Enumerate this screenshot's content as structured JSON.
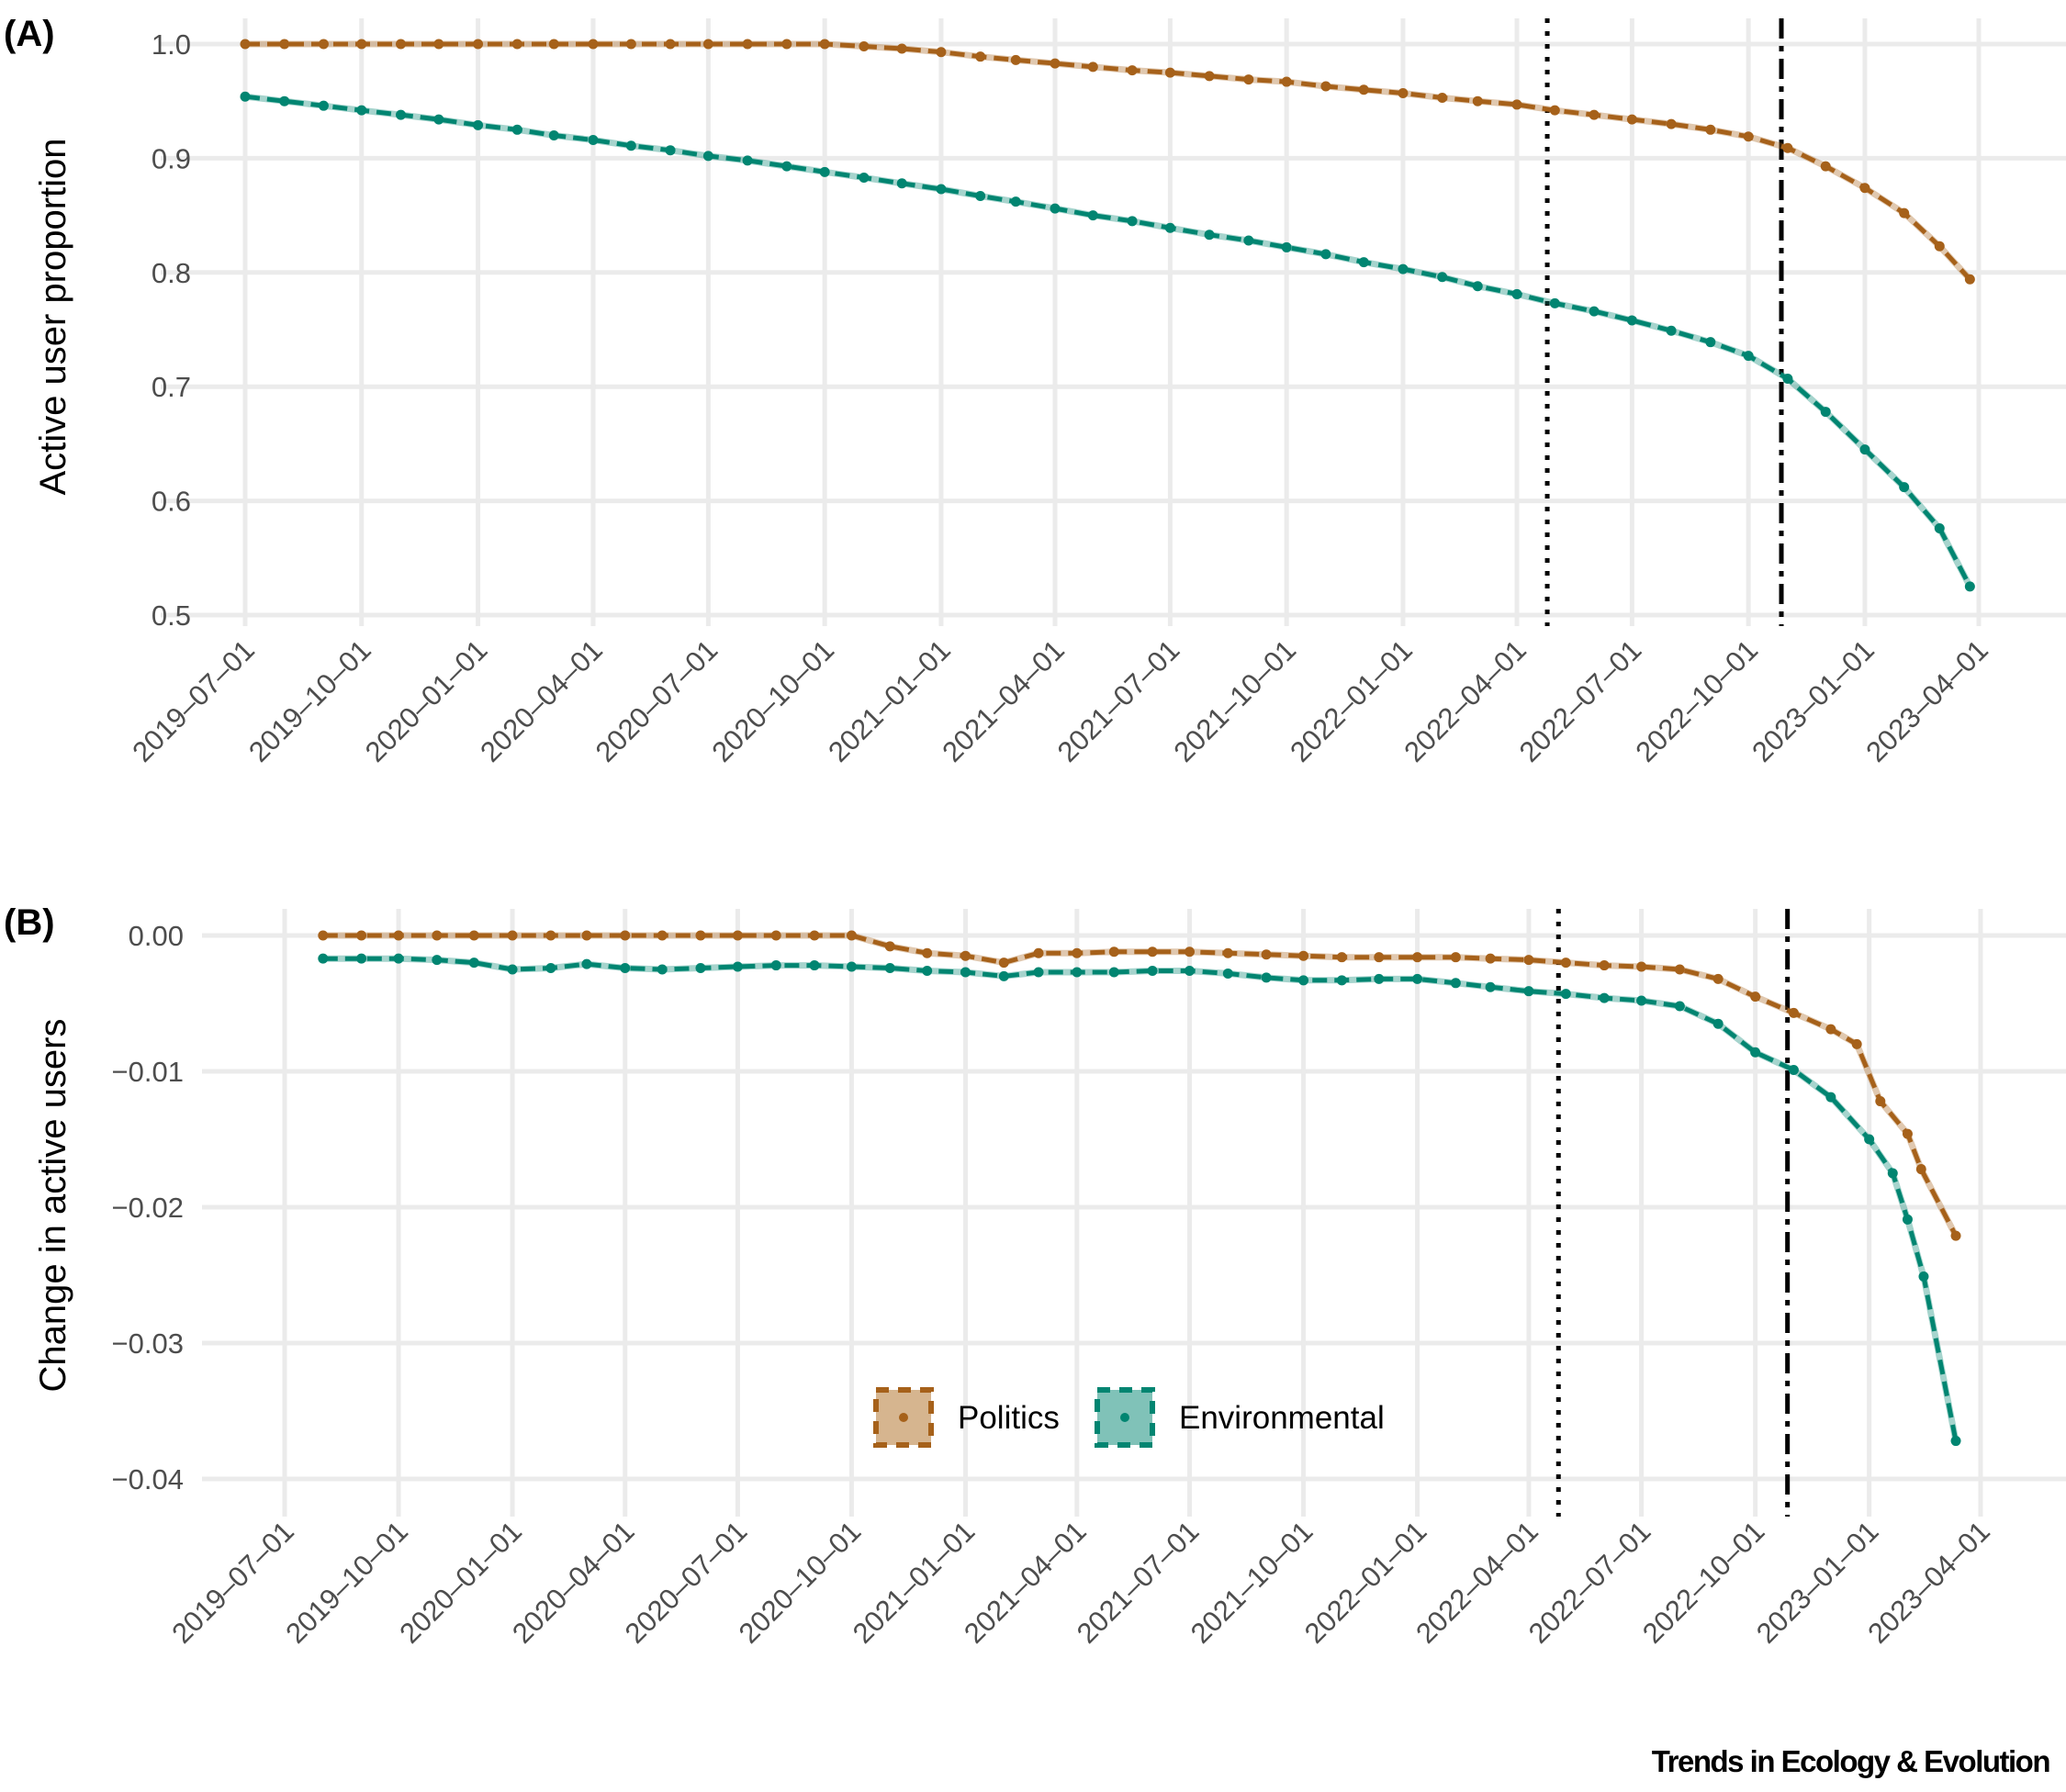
{
  "footer": "Trends in Ecology & Evolution",
  "legend": [
    {
      "label": "Politics",
      "color": "#a6611a",
      "fill": "#d6b58f"
    },
    {
      "label": "Environmental",
      "color": "#018571",
      "fill": "#80c2b8"
    }
  ],
  "chart_data": [
    {
      "panel_label": "(A)",
      "type": "line",
      "ylabel": "Active user proportion",
      "xlabel": "",
      "ylim": [
        0.5,
        1.0
      ],
      "yticks": [
        "1.0",
        "0.9",
        "0.8",
        "0.7",
        "0.6",
        "0.5"
      ],
      "ytick_values": [
        1.0,
        0.9,
        0.8,
        0.7,
        0.6,
        0.5
      ],
      "xticks": [
        "2019-07-01",
        "2019-10-01",
        "2020-01-01",
        "2020-04-01",
        "2020-07-01",
        "2020-10-01",
        "2021-01-01",
        "2021-04-01",
        "2021-07-01",
        "2021-10-01",
        "2022-01-01",
        "2022-04-01",
        "2022-07-01",
        "2022-10-01",
        "2023-01-01",
        "2023-04-01"
      ],
      "grid": true,
      "vlines": [
        {
          "date": "2022-04-25",
          "style": "dotted"
        },
        {
          "date": "2022-10-27",
          "style": "dashdot"
        }
      ],
      "series": [
        {
          "name": "Politics",
          "color": "#a6611a",
          "points": [
            [
              "2019-07-01",
              1.0
            ],
            [
              "2019-08-01",
              1.0
            ],
            [
              "2019-09-01",
              1.0
            ],
            [
              "2019-10-01",
              1.0
            ],
            [
              "2019-11-01",
              1.0
            ],
            [
              "2019-12-01",
              1.0
            ],
            [
              "2020-01-01",
              1.0
            ],
            [
              "2020-02-01",
              1.0
            ],
            [
              "2020-03-01",
              1.0
            ],
            [
              "2020-04-01",
              1.0
            ],
            [
              "2020-05-01",
              1.0
            ],
            [
              "2020-06-01",
              1.0
            ],
            [
              "2020-07-01",
              1.0
            ],
            [
              "2020-08-01",
              1.0
            ],
            [
              "2020-09-01",
              1.0
            ],
            [
              "2020-10-01",
              1.0
            ],
            [
              "2020-11-01",
              0.998
            ],
            [
              "2020-12-01",
              0.996
            ],
            [
              "2021-01-01",
              0.993
            ],
            [
              "2021-02-01",
              0.989
            ],
            [
              "2021-03-01",
              0.986
            ],
            [
              "2021-04-01",
              0.983
            ],
            [
              "2021-05-01",
              0.98
            ],
            [
              "2021-06-01",
              0.977
            ],
            [
              "2021-07-01",
              0.975
            ],
            [
              "2021-08-01",
              0.972
            ],
            [
              "2021-09-01",
              0.969
            ],
            [
              "2021-10-01",
              0.967
            ],
            [
              "2021-11-01",
              0.963
            ],
            [
              "2021-12-01",
              0.96
            ],
            [
              "2022-01-01",
              0.957
            ],
            [
              "2022-02-01",
              0.953
            ],
            [
              "2022-03-01",
              0.95
            ],
            [
              "2022-04-01",
              0.947
            ],
            [
              "2022-05-01",
              0.942
            ],
            [
              "2022-06-01",
              0.938
            ],
            [
              "2022-07-01",
              0.934
            ],
            [
              "2022-08-01",
              0.93
            ],
            [
              "2022-09-01",
              0.925
            ],
            [
              "2022-10-01",
              0.919
            ],
            [
              "2022-11-01",
              0.909
            ],
            [
              "2022-12-01",
              0.893
            ],
            [
              "2023-01-01",
              0.874
            ],
            [
              "2023-02-01",
              0.852
            ],
            [
              "2023-03-01",
              0.823
            ],
            [
              "2023-03-25",
              0.794
            ]
          ]
        },
        {
          "name": "Environmental",
          "color": "#018571",
          "points": [
            [
              "2019-07-01",
              0.954
            ],
            [
              "2019-08-01",
              0.95
            ],
            [
              "2019-09-01",
              0.946
            ],
            [
              "2019-10-01",
              0.942
            ],
            [
              "2019-11-01",
              0.938
            ],
            [
              "2019-12-01",
              0.934
            ],
            [
              "2020-01-01",
              0.929
            ],
            [
              "2020-02-01",
              0.925
            ],
            [
              "2020-03-01",
              0.92
            ],
            [
              "2020-04-01",
              0.916
            ],
            [
              "2020-05-01",
              0.911
            ],
            [
              "2020-06-01",
              0.907
            ],
            [
              "2020-07-01",
              0.902
            ],
            [
              "2020-08-01",
              0.898
            ],
            [
              "2020-09-01",
              0.893
            ],
            [
              "2020-10-01",
              0.888
            ],
            [
              "2020-11-01",
              0.883
            ],
            [
              "2020-12-01",
              0.878
            ],
            [
              "2021-01-01",
              0.873
            ],
            [
              "2021-02-01",
              0.867
            ],
            [
              "2021-03-01",
              0.862
            ],
            [
              "2021-04-01",
              0.856
            ],
            [
              "2021-05-01",
              0.85
            ],
            [
              "2021-06-01",
              0.845
            ],
            [
              "2021-07-01",
              0.839
            ],
            [
              "2021-08-01",
              0.833
            ],
            [
              "2021-09-01",
              0.828
            ],
            [
              "2021-10-01",
              0.822
            ],
            [
              "2021-11-01",
              0.816
            ],
            [
              "2021-12-01",
              0.809
            ],
            [
              "2022-01-01",
              0.803
            ],
            [
              "2022-02-01",
              0.796
            ],
            [
              "2022-03-01",
              0.788
            ],
            [
              "2022-04-01",
              0.781
            ],
            [
              "2022-05-01",
              0.773
            ],
            [
              "2022-06-01",
              0.766
            ],
            [
              "2022-07-01",
              0.758
            ],
            [
              "2022-08-01",
              0.749
            ],
            [
              "2022-09-01",
              0.739
            ],
            [
              "2022-10-01",
              0.727
            ],
            [
              "2022-11-01",
              0.707
            ],
            [
              "2022-12-01",
              0.678
            ],
            [
              "2023-01-01",
              0.645
            ],
            [
              "2023-02-01",
              0.612
            ],
            [
              "2023-03-01",
              0.576
            ],
            [
              "2023-03-25",
              0.525
            ]
          ]
        }
      ]
    },
    {
      "panel_label": "(B)",
      "type": "line",
      "ylabel": "Change in active users",
      "xlabel": "",
      "ylim": [
        -0.04,
        0.0
      ],
      "yticks": [
        "0.00",
        "−0.01",
        "−0.02",
        "−0.03",
        "−0.04"
      ],
      "ytick_values": [
        0.0,
        -0.01,
        -0.02,
        -0.03,
        -0.04
      ],
      "xticks": [
        "2019-07-01",
        "2019-10-01",
        "2020-01-01",
        "2020-04-01",
        "2020-07-01",
        "2020-10-01",
        "2021-01-01",
        "2021-04-01",
        "2021-07-01",
        "2021-10-01",
        "2022-01-01",
        "2022-04-01",
        "2022-07-01",
        "2022-10-01",
        "2023-01-01",
        "2023-04-01"
      ],
      "grid": true,
      "legend_position": "bottom-center",
      "vlines": [
        {
          "date": "2022-04-25",
          "style": "dotted"
        },
        {
          "date": "2022-10-27",
          "style": "dashdot"
        }
      ],
      "series": [
        {
          "name": "Politics",
          "color": "#a6611a",
          "points": [
            [
              "2019-08-01",
              0.0
            ],
            [
              "2019-09-01",
              0.0
            ],
            [
              "2019-10-01",
              0.0
            ],
            [
              "2019-11-01",
              0.0
            ],
            [
              "2019-12-01",
              0.0
            ],
            [
              "2020-01-01",
              0.0
            ],
            [
              "2020-02-01",
              0.0
            ],
            [
              "2020-03-01",
              0.0
            ],
            [
              "2020-04-01",
              0.0
            ],
            [
              "2020-05-01",
              0.0
            ],
            [
              "2020-06-01",
              0.0
            ],
            [
              "2020-07-01",
              0.0
            ],
            [
              "2020-08-01",
              0.0
            ],
            [
              "2020-09-01",
              0.0
            ],
            [
              "2020-10-01",
              0.0
            ],
            [
              "2020-11-01",
              -0.0008
            ],
            [
              "2020-12-01",
              -0.0013
            ],
            [
              "2021-01-01",
              -0.0015
            ],
            [
              "2021-02-01",
              -0.002
            ],
            [
              "2021-03-01",
              -0.0013
            ],
            [
              "2021-04-01",
              -0.0013
            ],
            [
              "2021-05-01",
              -0.0012
            ],
            [
              "2021-06-01",
              -0.0012
            ],
            [
              "2021-07-01",
              -0.0012
            ],
            [
              "2021-08-01",
              -0.0013
            ],
            [
              "2021-09-01",
              -0.0014
            ],
            [
              "2021-10-01",
              -0.0015
            ],
            [
              "2021-11-01",
              -0.0016
            ],
            [
              "2021-12-01",
              -0.0016
            ],
            [
              "2022-01-01",
              -0.0016
            ],
            [
              "2022-02-01",
              -0.0016
            ],
            [
              "2022-03-01",
              -0.0017
            ],
            [
              "2022-04-01",
              -0.0018
            ],
            [
              "2022-05-01",
              -0.002
            ],
            [
              "2022-06-01",
              -0.0022
            ],
            [
              "2022-07-01",
              -0.0023
            ],
            [
              "2022-08-01",
              -0.0025
            ],
            [
              "2022-09-01",
              -0.0032
            ],
            [
              "2022-10-01",
              -0.0045
            ],
            [
              "2022-11-01",
              -0.0057
            ],
            [
              "2022-12-01",
              -0.0069
            ],
            [
              "2022-12-22",
              -0.008
            ],
            [
              "2023-01-10",
              -0.0122
            ],
            [
              "2023-02-01",
              -0.0146
            ],
            [
              "2023-02-12",
              -0.0172
            ],
            [
              "2023-03-12",
              -0.0221
            ]
          ]
        },
        {
          "name": "Environmental",
          "color": "#018571",
          "points": [
            [
              "2019-08-01",
              -0.0017
            ],
            [
              "2019-09-01",
              -0.0017
            ],
            [
              "2019-10-01",
              -0.0017
            ],
            [
              "2019-11-01",
              -0.0018
            ],
            [
              "2019-12-01",
              -0.002
            ],
            [
              "2020-01-01",
              -0.0025
            ],
            [
              "2020-02-01",
              -0.0024
            ],
            [
              "2020-03-01",
              -0.0021
            ],
            [
              "2020-04-01",
              -0.0024
            ],
            [
              "2020-05-01",
              -0.0025
            ],
            [
              "2020-06-01",
              -0.0024
            ],
            [
              "2020-07-01",
              -0.0023
            ],
            [
              "2020-08-01",
              -0.0022
            ],
            [
              "2020-09-01",
              -0.0022
            ],
            [
              "2020-10-01",
              -0.0023
            ],
            [
              "2020-11-01",
              -0.0024
            ],
            [
              "2020-12-01",
              -0.0026
            ],
            [
              "2021-01-01",
              -0.0027
            ],
            [
              "2021-02-01",
              -0.003
            ],
            [
              "2021-03-01",
              -0.0027
            ],
            [
              "2021-04-01",
              -0.0027
            ],
            [
              "2021-05-01",
              -0.0027
            ],
            [
              "2021-06-01",
              -0.0026
            ],
            [
              "2021-07-01",
              -0.0026
            ],
            [
              "2021-08-01",
              -0.0028
            ],
            [
              "2021-09-01",
              -0.0031
            ],
            [
              "2021-10-01",
              -0.0033
            ],
            [
              "2021-11-01",
              -0.0033
            ],
            [
              "2021-12-01",
              -0.0032
            ],
            [
              "2022-01-01",
              -0.0032
            ],
            [
              "2022-02-01",
              -0.0035
            ],
            [
              "2022-03-01",
              -0.0038
            ],
            [
              "2022-04-01",
              -0.0041
            ],
            [
              "2022-05-01",
              -0.0043
            ],
            [
              "2022-06-01",
              -0.0046
            ],
            [
              "2022-07-01",
              -0.0048
            ],
            [
              "2022-08-01",
              -0.0052
            ],
            [
              "2022-09-01",
              -0.0065
            ],
            [
              "2022-10-01",
              -0.0086
            ],
            [
              "2022-11-01",
              -0.0099
            ],
            [
              "2022-12-01",
              -0.0119
            ],
            [
              "2023-01-01",
              -0.015
            ],
            [
              "2023-01-20",
              -0.0175
            ],
            [
              "2023-02-01",
              -0.0209
            ],
            [
              "2023-02-14",
              -0.0251
            ],
            [
              "2023-03-12",
              -0.0372
            ]
          ]
        }
      ]
    }
  ]
}
